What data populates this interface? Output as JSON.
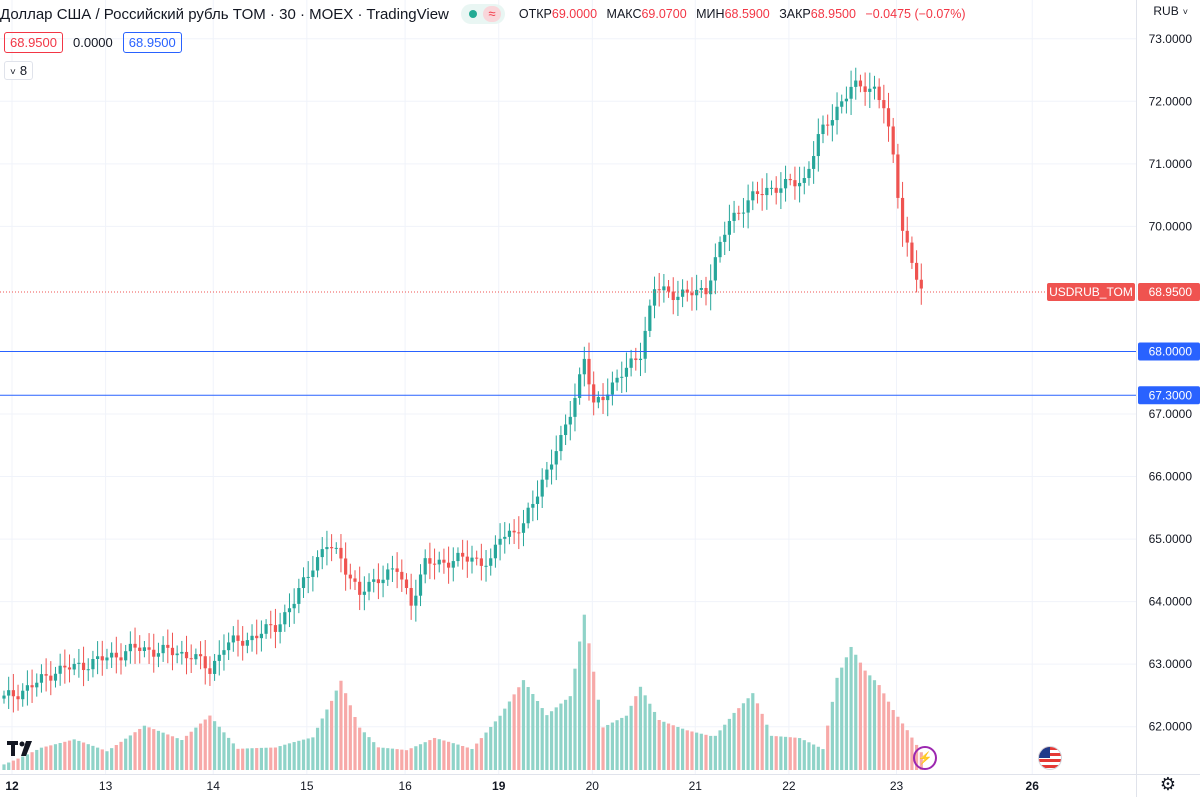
{
  "legend": {
    "title": "Доллар США / Российский рубль TOM · 30 · MOEX · TradingView",
    "wave_glyph": "≈",
    "open_label": "ОТКР",
    "open_value": "69.0000",
    "high_label": "МАКС",
    "high_value": "69.0700",
    "low_label": "МИН",
    "low_value": "68.5900",
    "close_label": "ЗАКР",
    "close_value": "68.9500",
    "change_value": "−0.0475 (−0.07%)"
  },
  "price_boxes": {
    "price": "68.9500",
    "spread": "0.0000",
    "ask": "68.9500"
  },
  "indicator_toggle": {
    "count": "8"
  },
  "currency": "RUB",
  "icons": {
    "logo": "tradingview-logo",
    "lightning": "lightning-icon",
    "flag": "us-flag-icon",
    "settings": "gear-icon"
  },
  "colors": {
    "up": "#26a69a",
    "down": "#ef5350",
    "line": "#2962ff",
    "grid": "#f0f3fa"
  },
  "chart_data": {
    "type": "candlestick",
    "symbol_label": "USDRUB_TOM",
    "last_price": "68.9500",
    "y_range": [
      61.5,
      73.3
    ],
    "y_ticks": [
      "73.0000",
      "72.0000",
      "71.0000",
      "70.0000",
      "67.0000",
      "66.0000",
      "65.0000",
      "64.0000",
      "63.0000",
      "62.0000"
    ],
    "x_ticks": [
      {
        "label": "12",
        "bold": true
      },
      {
        "label": "13",
        "bold": false
      },
      {
        "label": "14",
        "bold": false
      },
      {
        "label": "15",
        "bold": false
      },
      {
        "label": "16",
        "bold": false
      },
      {
        "label": "19",
        "bold": true
      },
      {
        "label": "20",
        "bold": false
      },
      {
        "label": "21",
        "bold": false
      },
      {
        "label": "22",
        "bold": false
      },
      {
        "label": "23",
        "bold": false
      },
      {
        "label": "26",
        "bold": true
      }
    ],
    "horizontal_lines": [
      {
        "value": 68.0,
        "label": "68.0000"
      },
      {
        "value": 67.3,
        "label": "67.3000"
      }
    ],
    "series_waypoints": [
      [
        0,
        62.45
      ],
      [
        6,
        62.65
      ],
      [
        11,
        62.9
      ],
      [
        15,
        62.95
      ],
      [
        22,
        63.1
      ],
      [
        28,
        63.25
      ],
      [
        35,
        63.2
      ],
      [
        40,
        63.15
      ],
      [
        44,
        62.9
      ],
      [
        47,
        63.3
      ],
      [
        52,
        63.4
      ],
      [
        58,
        63.6
      ],
      [
        62,
        64.0
      ],
      [
        66,
        64.6
      ],
      [
        69,
        64.9
      ],
      [
        72,
        64.7
      ],
      [
        76,
        64.1
      ],
      [
        80,
        64.4
      ],
      [
        84,
        64.5
      ],
      [
        87,
        64.0
      ],
      [
        90,
        64.6
      ],
      [
        95,
        64.65
      ],
      [
        100,
        64.7
      ],
      [
        104,
        64.6
      ],
      [
        106,
        65.05
      ],
      [
        111,
        65.2
      ],
      [
        115,
        65.95
      ],
      [
        119,
        66.55
      ],
      [
        122,
        67.3
      ],
      [
        124,
        67.9
      ],
      [
        126,
        67.1
      ],
      [
        129,
        67.4
      ],
      [
        133,
        67.7
      ],
      [
        136,
        68.0
      ],
      [
        139,
        69.0
      ],
      [
        142,
        68.95
      ],
      [
        146,
        68.9
      ],
      [
        150,
        69.0
      ],
      [
        152,
        69.45
      ],
      [
        155,
        70.1
      ],
      [
        159,
        70.4
      ],
      [
        163,
        70.6
      ],
      [
        167,
        70.65
      ],
      [
        171,
        70.75
      ],
      [
        174,
        71.4
      ],
      [
        178,
        71.9
      ],
      [
        181,
        72.2
      ],
      [
        184,
        72.25
      ],
      [
        186,
        72.2
      ],
      [
        188,
        71.9
      ],
      [
        190,
        71.1
      ],
      [
        192,
        70.0
      ],
      [
        194,
        69.4
      ],
      [
        196,
        68.95
      ]
    ],
    "volume_waypoints": [
      [
        0,
        8
      ],
      [
        8,
        28
      ],
      [
        15,
        35
      ],
      [
        22,
        20
      ],
      [
        30,
        45
      ],
      [
        38,
        30
      ],
      [
        44,
        55
      ],
      [
        50,
        22
      ],
      [
        58,
        25
      ],
      [
        66,
        40
      ],
      [
        70,
        90
      ],
      [
        72,
        120
      ],
      [
        76,
        60
      ],
      [
        80,
        30
      ],
      [
        86,
        24
      ],
      [
        92,
        36
      ],
      [
        100,
        22
      ],
      [
        106,
        55
      ],
      [
        111,
        90
      ],
      [
        116,
        55
      ],
      [
        121,
        75
      ],
      [
        124,
        160
      ],
      [
        128,
        45
      ],
      [
        133,
        60
      ],
      [
        136,
        95
      ],
      [
        140,
        60
      ],
      [
        146,
        52
      ],
      [
        152,
        48
      ],
      [
        156,
        75
      ],
      [
        160,
        95
      ],
      [
        164,
        40
      ],
      [
        170,
        35
      ],
      [
        175,
        22
      ],
      [
        178,
        95
      ],
      [
        181,
        125
      ],
      [
        184,
        100
      ],
      [
        187,
        85
      ],
      [
        190,
        60
      ],
      [
        193,
        40
      ],
      [
        196,
        18
      ]
    ],
    "bar_count": 197
  }
}
